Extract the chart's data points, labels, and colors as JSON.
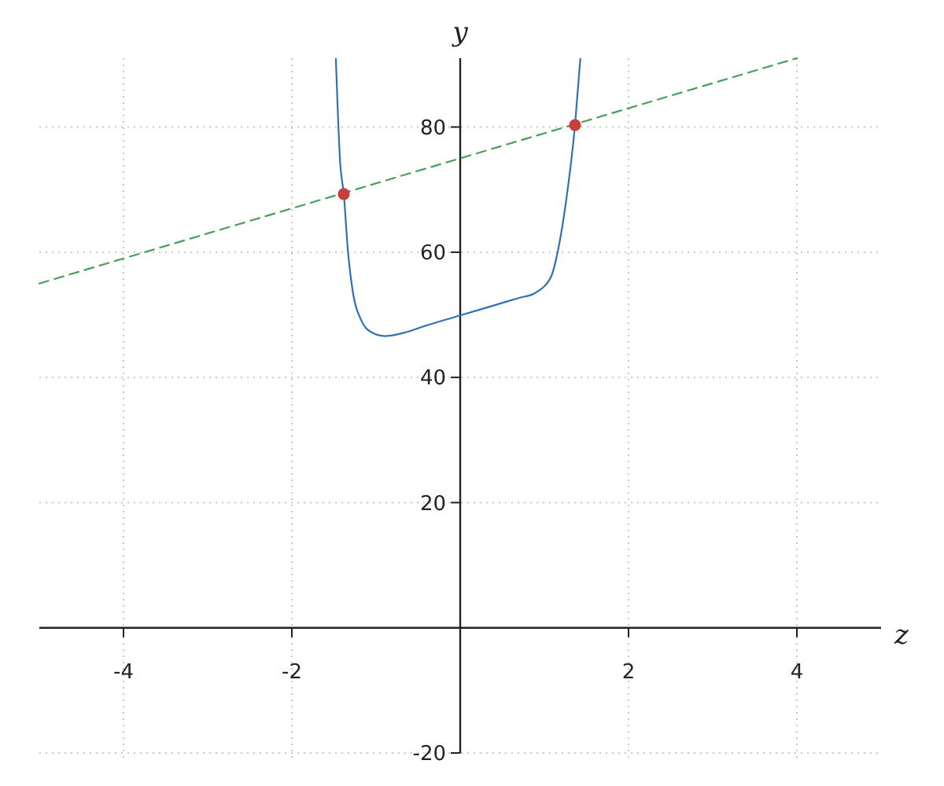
{
  "chart_data": {
    "type": "line",
    "xlabel": "z",
    "ylabel": "y",
    "xlim": [
      -5,
      5
    ],
    "ylim": [
      -20,
      91
    ],
    "xticks": [
      -4,
      -2,
      2,
      4
    ],
    "yticks": [
      -20,
      20,
      40,
      60,
      80
    ],
    "grid": true,
    "series": [
      {
        "color": "#3072b5",
        "line_style": "solid",
        "marker": "none",
        "x": [
          -1.477,
          -1.426,
          -1.383,
          -1.333,
          -1.271,
          -1.178,
          -1.053,
          -0.897,
          -0.679,
          -0.4,
          0,
          0.4,
          0.7,
          0.879,
          0.95,
          1.003,
          1.097,
          1.159,
          1.252,
          1.364,
          1.427
        ],
        "values": [
          90.9,
          74.3,
          69.3,
          60.1,
          53.3,
          49.2,
          47.2,
          46.6,
          47.1,
          48.3,
          49.9,
          51.5,
          52.7,
          53.4,
          54,
          54.6,
          56.7,
          60.1,
          67.6,
          80.3,
          90.9
        ]
      },
      {
        "color": "#4a9e5c",
        "line_style": "dashed",
        "marker": "none",
        "x": [
          -5,
          4
        ],
        "values": [
          55,
          91
        ]
      },
      {
        "type": "scatter",
        "color": "#c8403a",
        "marker": "circle",
        "x": [
          -1.383,
          1.364
        ],
        "values": [
          69.3,
          80.3
        ]
      }
    ]
  }
}
